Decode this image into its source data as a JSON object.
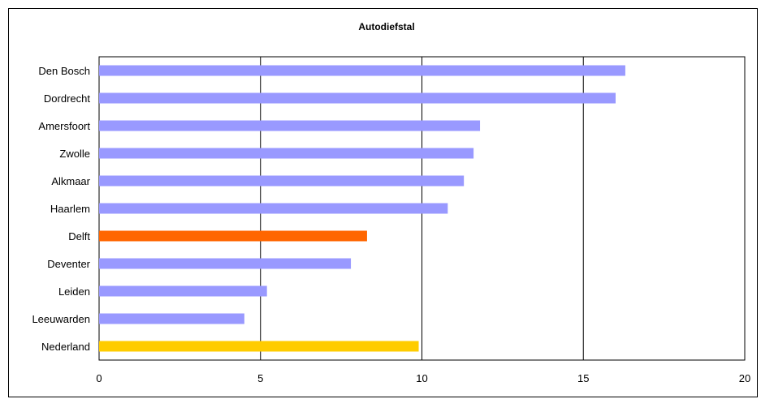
{
  "chart_data": {
    "type": "bar",
    "orientation": "horizontal",
    "title": "Autodiefstal",
    "xlabel": "",
    "ylabel": "",
    "categories": [
      "Den Bosch",
      "Dordrecht",
      "Amersfoort",
      "Zwolle",
      "Alkmaar",
      "Haarlem",
      "Delft",
      "Deventer",
      "Leiden",
      "Leeuwarden",
      "Nederland"
    ],
    "values": [
      16.3,
      16.0,
      11.8,
      11.6,
      11.3,
      10.8,
      8.3,
      7.8,
      5.2,
      4.5,
      9.9
    ],
    "colors": [
      "#9999ff",
      "#9999ff",
      "#9999ff",
      "#9999ff",
      "#9999ff",
      "#9999ff",
      "#ff6600",
      "#9999ff",
      "#9999ff",
      "#9999ff",
      "#ffcc00"
    ],
    "xlim": [
      0,
      20
    ],
    "xticks": [
      0,
      5,
      10,
      15,
      20
    ],
    "grid": true,
    "legend": "none"
  }
}
